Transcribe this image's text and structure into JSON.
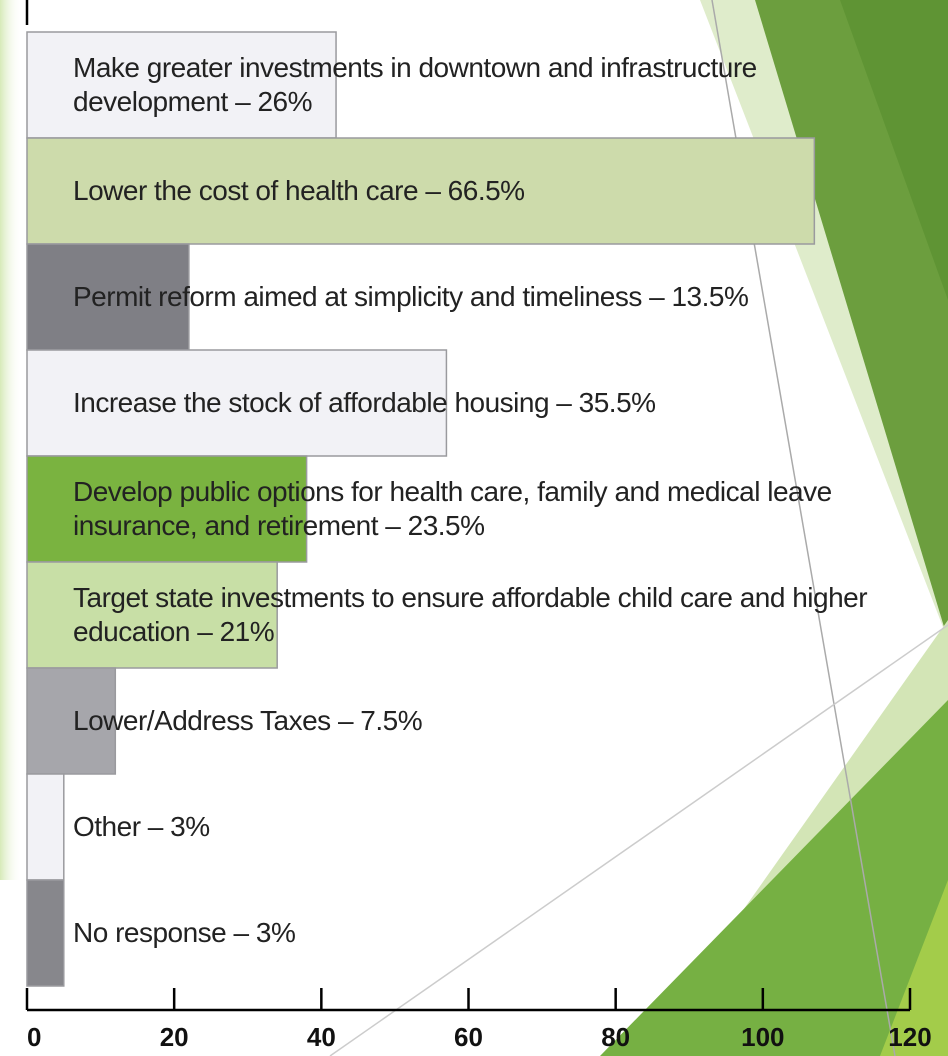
{
  "chart_data": {
    "type": "bar",
    "orientation": "horizontal",
    "categories": [
      "Make greater investments in downtown and infrastructure development – 26%",
      "Lower the cost of health care –  66.5%",
      "Permit reform aimed at simplicity and timeliness  – 13.5%",
      "Increase the stock of affordable housing  –  35.5%",
      "Develop public options for health care, family and medical leave insurance, and retirement – 23.5%",
      "Target state investments to ensure affordable child care and higher education –  21%",
      "Lower/Address Taxes –  7.5%",
      "Other –  3%",
      "No response –  3%"
    ],
    "values": [
      42,
      107,
      22,
      57,
      38,
      34,
      12,
      5,
      5
    ],
    "colors": [
      "#f2f2f6",
      "#cddbab",
      "#7f7f85",
      "#f2f2f6",
      "#7ab340",
      "#c8dfa6",
      "#a6a6ab",
      "#f2f2f6",
      "#87878c"
    ],
    "xlim": [
      0,
      120
    ],
    "xticks": [
      0,
      20,
      40,
      60,
      80,
      100,
      120
    ]
  }
}
